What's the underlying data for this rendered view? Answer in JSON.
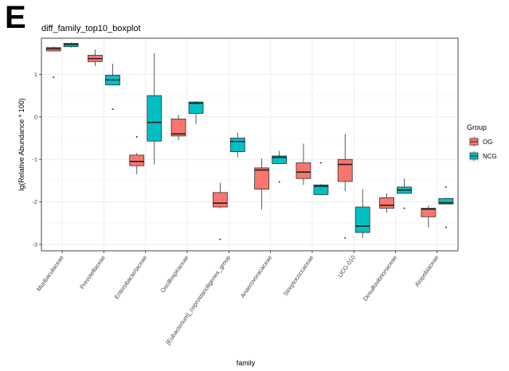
{
  "panel_letter": "E",
  "colors": {
    "OG": "#F8766D",
    "NCG": "#00BFC4",
    "panel_border": "#333333",
    "grid": "#EBEBEB"
  },
  "chart_data": {
    "type": "boxplot",
    "title": "diff_family_top10_boxplot",
    "xlabel": "family",
    "ylabel": "lg(Relative Abundance * 100)",
    "ylim": [
      -3.15,
      1.85
    ],
    "yticks": [
      1,
      0,
      -1,
      -2,
      -3
    ],
    "ytick_labels": [
      "1",
      "0",
      "-1",
      "-2",
      "-3"
    ],
    "grid": true,
    "legend_placement": "right",
    "legend_title": "Group",
    "categories": [
      "Muribaculaceae",
      "Prevotellaceae",
      "Enterobacteriaceae",
      "Oscillospiraceae",
      "[Eubacterium]_coprostanoligenes_group",
      "Anaerovoracaceae",
      "Streptococcaceae",
      "UCG-010",
      "Desulfovibrionaceae",
      "Atopobiaceae"
    ],
    "series": [
      {
        "name": "OG",
        "boxes": [
          {
            "whisker_low": 1.55,
            "q1": 1.55,
            "median": 1.6,
            "q3": 1.63,
            "whisker_high": 1.65,
            "outliers": [
              0.93
            ]
          },
          {
            "whisker_low": 1.2,
            "q1": 1.3,
            "median": 1.37,
            "q3": 1.45,
            "whisker_high": 1.58,
            "outliers": []
          },
          {
            "whisker_low": -1.35,
            "q1": -1.15,
            "median": -1.05,
            "q3": -0.9,
            "whisker_high": -0.85,
            "outliers": [
              -0.47
            ]
          },
          {
            "whisker_low": -0.55,
            "q1": -0.45,
            "median": -0.4,
            "q3": -0.05,
            "whisker_high": 0.05,
            "outliers": []
          },
          {
            "whisker_low": -2.15,
            "q1": -2.12,
            "median": -2.03,
            "q3": -1.78,
            "whisker_high": -1.55,
            "outliers": [
              -2.88
            ]
          },
          {
            "whisker_low": -2.18,
            "q1": -1.7,
            "median": -1.25,
            "q3": -1.2,
            "whisker_high": -0.98,
            "outliers": []
          },
          {
            "whisker_low": -1.6,
            "q1": -1.45,
            "median": -1.3,
            "q3": -1.08,
            "whisker_high": -0.63,
            "outliers": []
          },
          {
            "whisker_low": -1.75,
            "q1": -1.52,
            "median": -1.12,
            "q3": -1.0,
            "whisker_high": -0.4,
            "outliers": [
              -2.85
            ]
          },
          {
            "whisker_low": -2.25,
            "q1": -2.15,
            "median": -2.08,
            "q3": -1.9,
            "whisker_high": -1.8,
            "outliers": []
          },
          {
            "whisker_low": -2.6,
            "q1": -2.35,
            "median": -2.17,
            "q3": -2.15,
            "whisker_high": -2.08,
            "outliers": []
          }
        ]
      },
      {
        "name": "NCG",
        "boxes": [
          {
            "whisker_low": 1.63,
            "q1": 1.65,
            "median": 1.7,
            "q3": 1.73,
            "whisker_high": 1.75,
            "outliers": []
          },
          {
            "whisker_low": 0.75,
            "q1": 0.75,
            "median": 0.87,
            "q3": 0.98,
            "whisker_high": 1.25,
            "outliers": [
              0.18
            ]
          },
          {
            "whisker_low": -1.12,
            "q1": -0.57,
            "median": -0.13,
            "q3": 0.5,
            "whisker_high": 1.5,
            "outliers": []
          },
          {
            "whisker_low": -0.17,
            "q1": 0.08,
            "median": 0.32,
            "q3": 0.35,
            "whisker_high": 0.37,
            "outliers": []
          },
          {
            "whisker_low": -0.95,
            "q1": -0.82,
            "median": -0.58,
            "q3": -0.5,
            "whisker_high": -0.37,
            "outliers": []
          },
          {
            "whisker_low": -1.1,
            "q1": -1.1,
            "median": -0.95,
            "q3": -0.92,
            "whisker_high": -0.8,
            "outliers": [
              -1.53
            ]
          },
          {
            "whisker_low": -1.83,
            "q1": -1.83,
            "median": -1.63,
            "q3": -1.6,
            "whisker_high": -1.58,
            "outliers": [
              -1.08
            ]
          },
          {
            "whisker_low": -2.85,
            "q1": -2.72,
            "median": -2.57,
            "q3": -2.12,
            "whisker_high": -1.7,
            "outliers": []
          },
          {
            "whisker_low": -1.8,
            "q1": -1.8,
            "median": -1.72,
            "q3": -1.65,
            "whisker_high": -1.45,
            "outliers": [
              -2.15
            ]
          },
          {
            "whisker_low": -2.05,
            "q1": -2.05,
            "median": -2.02,
            "q3": -1.92,
            "whisker_high": -1.9,
            "outliers": [
              -2.6,
              -1.65
            ]
          }
        ]
      }
    ]
  }
}
